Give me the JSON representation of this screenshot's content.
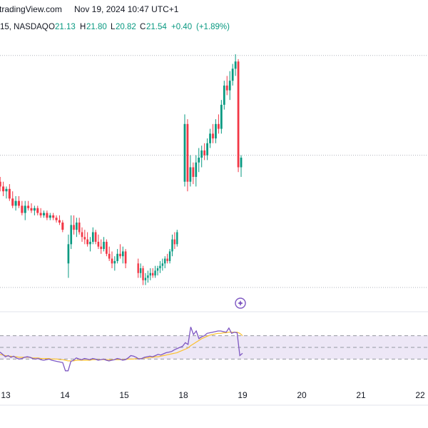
{
  "header": {
    "source": "tradingView.com",
    "timestamp": "Nov 19, 2024 10:47 UTC+1"
  },
  "ohlc": {
    "symbol": "15, NASDAQ",
    "o_label": "O",
    "o_value": "21.13",
    "h_label": "H",
    "h_value": "21.80",
    "l_label": "L",
    "l_value": "20.82",
    "c_label": "C",
    "c_value": "21.54",
    "change": "+0.40",
    "change_pct": "(+1.89%)"
  },
  "colors": {
    "up": "#089981",
    "down": "#f23645",
    "rsi_line": "#7e57c2",
    "rsi_ma": "#fbc02d",
    "rsi_band": "#ede7f6",
    "grid": "#e0e3eb"
  },
  "icons": [
    "flag-icon"
  ],
  "chart_data": [
    {
      "type": "candlestick",
      "title": "",
      "xlabel": "",
      "ylabel": "",
      "x_ticks": [
        "13",
        "14",
        "15",
        "18",
        "19",
        "20",
        "21",
        "22"
      ],
      "ylim": [
        0,
        100
      ],
      "y_scale_note": "",
      "reference_lines_y": [
        96.5,
        55,
        0
      ],
      "sessions": [
        {
          "day": "13",
          "candles": [
            {
              "o": 44,
              "h": 46,
              "l": 40,
              "c": 42
            },
            {
              "o": 42,
              "h": 44,
              "l": 38,
              "c": 40
            },
            {
              "o": 40,
              "h": 42,
              "l": 37,
              "c": 41
            },
            {
              "o": 41,
              "h": 43,
              "l": 36,
              "c": 37
            },
            {
              "o": 37,
              "h": 40,
              "l": 33,
              "c": 34
            },
            {
              "o": 34,
              "h": 38,
              "l": 32,
              "c": 36
            },
            {
              "o": 36,
              "h": 38,
              "l": 33,
              "c": 34
            },
            {
              "o": 34,
              "h": 36,
              "l": 30,
              "c": 31
            },
            {
              "o": 31,
              "h": 36,
              "l": 28,
              "c": 34
            },
            {
              "o": 34,
              "h": 36,
              "l": 32,
              "c": 33
            },
            {
              "o": 33,
              "h": 35,
              "l": 31,
              "c": 32
            },
            {
              "o": 32,
              "h": 34,
              "l": 30,
              "c": 33
            },
            {
              "o": 33,
              "h": 34,
              "l": 30,
              "c": 31
            },
            {
              "o": 31,
              "h": 33,
              "l": 29,
              "c": 30
            },
            {
              "o": 30,
              "h": 32,
              "l": 29,
              "c": 31
            },
            {
              "o": 31,
              "h": 32,
              "l": 28,
              "c": 29
            },
            {
              "o": 29,
              "h": 31,
              "l": 28,
              "c": 30
            },
            {
              "o": 30,
              "h": 31,
              "l": 28,
              "c": 29
            },
            {
              "o": 29,
              "h": 30,
              "l": 27,
              "c": 28
            },
            {
              "o": 28,
              "h": 30,
              "l": 26,
              "c": 27
            },
            {
              "o": 27,
              "h": 28,
              "l": 23,
              "c": 24
            }
          ]
        },
        {
          "day": "14",
          "candles": [
            {
              "o": 10,
              "h": 22,
              "l": 4,
              "c": 18
            },
            {
              "o": 18,
              "h": 30,
              "l": 16,
              "c": 26
            },
            {
              "o": 26,
              "h": 30,
              "l": 22,
              "c": 24
            },
            {
              "o": 24,
              "h": 29,
              "l": 21,
              "c": 27
            },
            {
              "o": 27,
              "h": 29,
              "l": 22,
              "c": 23
            },
            {
              "o": 23,
              "h": 25,
              "l": 19,
              "c": 21
            },
            {
              "o": 21,
              "h": 24,
              "l": 18,
              "c": 20
            },
            {
              "o": 20,
              "h": 23,
              "l": 17,
              "c": 18
            },
            {
              "o": 18,
              "h": 21,
              "l": 15,
              "c": 19
            },
            {
              "o": 19,
              "h": 25,
              "l": 18,
              "c": 23
            },
            {
              "o": 23,
              "h": 24,
              "l": 18,
              "c": 19
            },
            {
              "o": 19,
              "h": 22,
              "l": 16,
              "c": 17
            },
            {
              "o": 17,
              "h": 20,
              "l": 14,
              "c": 16
            },
            {
              "o": 16,
              "h": 21,
              "l": 15,
              "c": 19
            },
            {
              "o": 19,
              "h": 20,
              "l": 13,
              "c": 14
            },
            {
              "o": 14,
              "h": 17,
              "l": 11,
              "c": 12
            },
            {
              "o": 12,
              "h": 15,
              "l": 8,
              "c": 10
            },
            {
              "o": 10,
              "h": 13,
              "l": 7,
              "c": 11
            },
            {
              "o": 11,
              "h": 16,
              "l": 10,
              "c": 14
            },
            {
              "o": 14,
              "h": 18,
              "l": 12,
              "c": 13
            },
            {
              "o": 13,
              "h": 17,
              "l": 10,
              "c": 15
            },
            {
              "o": 15,
              "h": 16,
              "l": 8,
              "c": 10
            }
          ]
        },
        {
          "day": "15",
          "candles": [
            {
              "o": 10,
              "h": 12,
              "l": 4,
              "c": 6
            },
            {
              "o": 6,
              "h": 10,
              "l": 4,
              "c": 8
            },
            {
              "o": 8,
              "h": 9,
              "l": 1,
              "c": 3
            },
            {
              "o": 3,
              "h": 6,
              "l": 1,
              "c": 4
            },
            {
              "o": 4,
              "h": 7,
              "l": 2,
              "c": 5
            },
            {
              "o": 5,
              "h": 8,
              "l": 3,
              "c": 6
            },
            {
              "o": 6,
              "h": 8,
              "l": 4,
              "c": 5
            },
            {
              "o": 5,
              "h": 9,
              "l": 4,
              "c": 7
            },
            {
              "o": 7,
              "h": 9,
              "l": 5,
              "c": 8
            },
            {
              "o": 8,
              "h": 11,
              "l": 6,
              "c": 9
            },
            {
              "o": 9,
              "h": 12,
              "l": 7,
              "c": 10
            },
            {
              "o": 10,
              "h": 13,
              "l": 8,
              "c": 12
            },
            {
              "o": 12,
              "h": 14,
              "l": 10,
              "c": 11
            },
            {
              "o": 11,
              "h": 16,
              "l": 10,
              "c": 15
            },
            {
              "o": 15,
              "h": 22,
              "l": 13,
              "c": 20
            },
            {
              "o": 20,
              "h": 23,
              "l": 16,
              "c": 18
            },
            {
              "o": 18,
              "h": 24,
              "l": 17,
              "c": 23
            }
          ]
        },
        {
          "day": "18",
          "candles": [
            {
              "o": 44,
              "h": 72,
              "l": 42,
              "c": 68
            },
            {
              "o": 68,
              "h": 70,
              "l": 40,
              "c": 44
            },
            {
              "o": 44,
              "h": 55,
              "l": 42,
              "c": 50
            },
            {
              "o": 50,
              "h": 52,
              "l": 43,
              "c": 46
            },
            {
              "o": 46,
              "h": 55,
              "l": 42,
              "c": 52
            },
            {
              "o": 52,
              "h": 58,
              "l": 48,
              "c": 54
            },
            {
              "o": 54,
              "h": 59,
              "l": 50,
              "c": 57
            },
            {
              "o": 57,
              "h": 60,
              "l": 53,
              "c": 55
            },
            {
              "o": 55,
              "h": 62,
              "l": 53,
              "c": 60
            },
            {
              "o": 60,
              "h": 66,
              "l": 58,
              "c": 64
            },
            {
              "o": 64,
              "h": 68,
              "l": 60,
              "c": 62
            },
            {
              "o": 62,
              "h": 70,
              "l": 60,
              "c": 68
            },
            {
              "o": 68,
              "h": 72,
              "l": 64,
              "c": 66
            },
            {
              "o": 66,
              "h": 78,
              "l": 64,
              "c": 76
            },
            {
              "o": 76,
              "h": 86,
              "l": 74,
              "c": 84
            },
            {
              "o": 84,
              "h": 88,
              "l": 80,
              "c": 82
            },
            {
              "o": 82,
              "h": 90,
              "l": 78,
              "c": 86
            },
            {
              "o": 86,
              "h": 93,
              "l": 84,
              "c": 91
            },
            {
              "o": 91,
              "h": 97,
              "l": 88,
              "c": 94
            },
            {
              "o": 94,
              "h": 95,
              "l": 48,
              "c": 50
            },
            {
              "o": 50,
              "h": 55,
              "l": 46,
              "c": 54
            }
          ]
        }
      ]
    },
    {
      "type": "line",
      "title": "",
      "xlabel": "",
      "ylabel": "",
      "ylim": [
        0,
        100
      ],
      "bands": {
        "upper": 70,
        "middle": 50,
        "lower": 30
      },
      "series": [
        {
          "name": "",
          "values": [
            42,
            38,
            34,
            36,
            33,
            35,
            32,
            30,
            31,
            33,
            34,
            33,
            31,
            30,
            31,
            29,
            28,
            29,
            30,
            28,
            27,
            26,
            25,
            24,
            10,
            10,
            26,
            28,
            32,
            30,
            29,
            31,
            30,
            29,
            31,
            30,
            28,
            29,
            30,
            28,
            27,
            28,
            29,
            31,
            30,
            28,
            29,
            32,
            36,
            35,
            33,
            30,
            31,
            33,
            34,
            35,
            34,
            36,
            38,
            37,
            39,
            41,
            42,
            43,
            46,
            48,
            50,
            52,
            58,
            55,
            85,
            72,
            78,
            65,
            68,
            70,
            74,
            75,
            76,
            77,
            78,
            78,
            77,
            76,
            83,
            74,
            76,
            75,
            36,
            40
          ]
        },
        {
          "name": "",
          "values": [
            38,
            37,
            36,
            35,
            35,
            34,
            34,
            33,
            33,
            33,
            33,
            33,
            32,
            32,
            32,
            31,
            31,
            31,
            31,
            30,
            30,
            30,
            29,
            29,
            28,
            27,
            27,
            27,
            28,
            28,
            28,
            28,
            28,
            28,
            29,
            29,
            29,
            29,
            29,
            29,
            29,
            29,
            29,
            29,
            29,
            29,
            29,
            30,
            30,
            30,
            31,
            31,
            31,
            32,
            32,
            33,
            33,
            34,
            34,
            35,
            36,
            37,
            38,
            39,
            40,
            41,
            43,
            45,
            47,
            49,
            53,
            56,
            59,
            62,
            65,
            67,
            69,
            71,
            72,
            73,
            74,
            74,
            75,
            75,
            76,
            76,
            76,
            76,
            74,
            70
          ]
        }
      ]
    }
  ]
}
